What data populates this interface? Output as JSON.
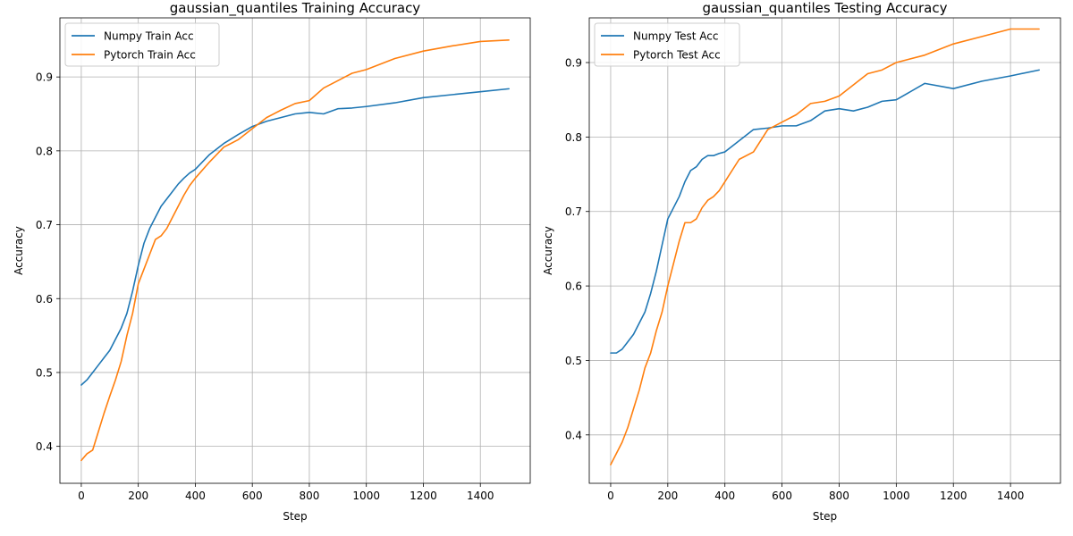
{
  "chart_data": [
    {
      "type": "line",
      "title": "gaussian_quantiles Training Accuracy",
      "xlabel": "Step",
      "ylabel": "Accuracy",
      "xlim": [
        -75,
        1575
      ],
      "ylim": [
        0.35,
        0.98
      ],
      "xticks": [
        0,
        200,
        400,
        600,
        800,
        1000,
        1200,
        1400
      ],
      "yticks": [
        0.4,
        0.5,
        0.6,
        0.7,
        0.8,
        0.9
      ],
      "grid": true,
      "legend_position": "upper left",
      "series": [
        {
          "name": "Numpy Train Acc",
          "color": "#1f77b4",
          "x": [
            0,
            20,
            40,
            60,
            80,
            100,
            120,
            140,
            160,
            180,
            200,
            220,
            240,
            260,
            280,
            300,
            320,
            340,
            360,
            380,
            400,
            450,
            500,
            550,
            600,
            650,
            700,
            750,
            800,
            850,
            900,
            950,
            1000,
            1100,
            1200,
            1300,
            1400,
            1500
          ],
          "y": [
            0.483,
            0.49,
            0.5,
            0.51,
            0.52,
            0.53,
            0.545,
            0.56,
            0.58,
            0.61,
            0.645,
            0.675,
            0.695,
            0.71,
            0.725,
            0.735,
            0.745,
            0.755,
            0.763,
            0.77,
            0.775,
            0.795,
            0.81,
            0.822,
            0.833,
            0.84,
            0.845,
            0.85,
            0.852,
            0.85,
            0.857,
            0.858,
            0.86,
            0.865,
            0.872,
            0.876,
            0.88,
            0.884
          ]
        },
        {
          "name": "Pytorch Train Acc",
          "color": "#ff7f0e",
          "x": [
            0,
            20,
            40,
            60,
            80,
            100,
            120,
            140,
            160,
            180,
            200,
            220,
            240,
            260,
            280,
            300,
            320,
            340,
            360,
            380,
            400,
            450,
            500,
            550,
            600,
            650,
            700,
            750,
            800,
            850,
            900,
            950,
            1000,
            1100,
            1200,
            1300,
            1400,
            1500
          ],
          "y": [
            0.381,
            0.39,
            0.395,
            0.42,
            0.445,
            0.468,
            0.49,
            0.515,
            0.55,
            0.58,
            0.62,
            0.64,
            0.66,
            0.68,
            0.685,
            0.695,
            0.71,
            0.725,
            0.74,
            0.753,
            0.763,
            0.785,
            0.805,
            0.815,
            0.83,
            0.845,
            0.855,
            0.864,
            0.868,
            0.885,
            0.895,
            0.905,
            0.91,
            0.925,
            0.935,
            0.942,
            0.948,
            0.95
          ]
        }
      ]
    },
    {
      "type": "line",
      "title": "gaussian_quantiles Testing Accuracy",
      "xlabel": "Step",
      "ylabel": "Accuracy",
      "xlim": [
        -75,
        1575
      ],
      "ylim": [
        0.335,
        0.96
      ],
      "xticks": [
        0,
        200,
        400,
        600,
        800,
        1000,
        1200,
        1400
      ],
      "yticks": [
        0.4,
        0.5,
        0.6,
        0.7,
        0.8,
        0.9
      ],
      "grid": true,
      "legend_position": "upper left",
      "series": [
        {
          "name": "Numpy Test Acc",
          "color": "#1f77b4",
          "x": [
            0,
            20,
            40,
            60,
            80,
            100,
            120,
            140,
            160,
            180,
            200,
            220,
            240,
            260,
            280,
            300,
            320,
            340,
            360,
            380,
            400,
            450,
            500,
            550,
            600,
            650,
            700,
            750,
            800,
            850,
            900,
            950,
            1000,
            1100,
            1200,
            1300,
            1400,
            1500
          ],
          "y": [
            0.51,
            0.51,
            0.515,
            0.525,
            0.535,
            0.55,
            0.565,
            0.59,
            0.62,
            0.655,
            0.69,
            0.705,
            0.72,
            0.74,
            0.755,
            0.76,
            0.77,
            0.775,
            0.775,
            0.778,
            0.78,
            0.795,
            0.81,
            0.812,
            0.815,
            0.815,
            0.822,
            0.835,
            0.838,
            0.835,
            0.84,
            0.848,
            0.85,
            0.872,
            0.865,
            0.875,
            0.882,
            0.89
          ]
        },
        {
          "name": "Pytorch Test Acc",
          "color": "#ff7f0e",
          "x": [
            0,
            20,
            40,
            60,
            80,
            100,
            120,
            140,
            160,
            180,
            200,
            220,
            240,
            260,
            280,
            300,
            320,
            340,
            360,
            380,
            400,
            450,
            500,
            550,
            600,
            650,
            700,
            750,
            800,
            850,
            900,
            950,
            1000,
            1100,
            1200,
            1300,
            1400,
            1500
          ],
          "y": [
            0.36,
            0.375,
            0.39,
            0.41,
            0.435,
            0.46,
            0.49,
            0.51,
            0.54,
            0.565,
            0.6,
            0.63,
            0.66,
            0.685,
            0.685,
            0.69,
            0.705,
            0.715,
            0.72,
            0.728,
            0.74,
            0.77,
            0.78,
            0.81,
            0.82,
            0.83,
            0.845,
            0.848,
            0.855,
            0.87,
            0.885,
            0.89,
            0.9,
            0.91,
            0.925,
            0.935,
            0.945,
            0.945
          ]
        }
      ]
    }
  ]
}
